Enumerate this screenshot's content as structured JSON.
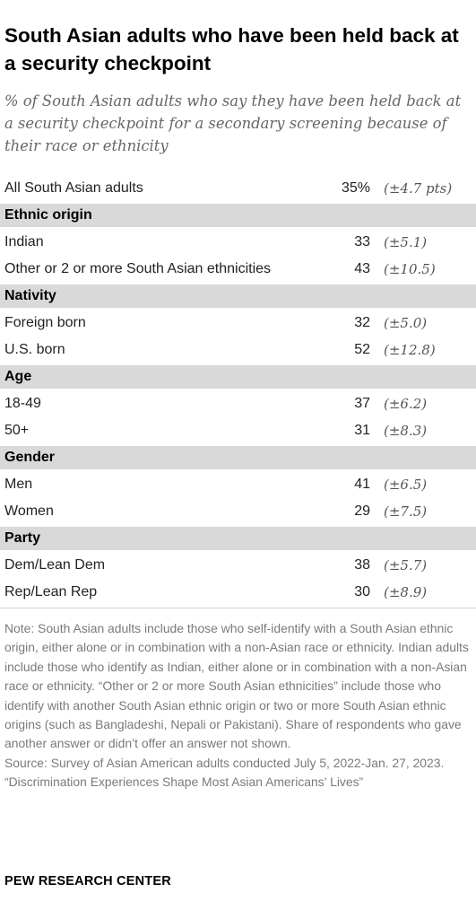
{
  "title": "South Asian adults who have been held back at a security checkpoint",
  "subtitle": "% of South Asian adults who say they have been held back at a security checkpoint for a secondary screening because of their race or ethnicity",
  "chart_data": {
    "type": "table",
    "columns": [
      "Group",
      "Share (%)",
      "Margin of error"
    ],
    "rows": [
      {
        "kind": "row",
        "label": "All South Asian adults",
        "value": "35%",
        "moe": "(±4.7 pts)"
      },
      {
        "kind": "header",
        "label": "Ethnic origin"
      },
      {
        "kind": "row",
        "label": "Indian",
        "value": "33",
        "moe": "(±5.1)"
      },
      {
        "kind": "row",
        "label": "Other or 2 or more South Asian ethnicities",
        "value": "43",
        "moe": "(±10.5)"
      },
      {
        "kind": "header",
        "label": "Nativity"
      },
      {
        "kind": "row",
        "label": "Foreign born",
        "value": "32",
        "moe": "(±5.0)"
      },
      {
        "kind": "row",
        "label": "U.S. born",
        "value": "52",
        "moe": "(±12.8)"
      },
      {
        "kind": "header",
        "label": "Age"
      },
      {
        "kind": "row",
        "label": "18-49",
        "value": "37",
        "moe": "(±6.2)"
      },
      {
        "kind": "row",
        "label": "50+",
        "value": "31",
        "moe": "(±8.3)"
      },
      {
        "kind": "header",
        "label": "Gender"
      },
      {
        "kind": "row",
        "label": "Men",
        "value": "41",
        "moe": "(±6.5)"
      },
      {
        "kind": "row",
        "label": "Women",
        "value": "29",
        "moe": "(±7.5)"
      },
      {
        "kind": "header",
        "label": "Party"
      },
      {
        "kind": "row",
        "label": "Dem/Lean Dem",
        "value": "38",
        "moe": "(±5.7)"
      },
      {
        "kind": "row",
        "label": "Rep/Lean Rep",
        "value": "30",
        "moe": "(±8.9)"
      }
    ]
  },
  "notes": {
    "note": "Note: South Asian adults include those who self-identify with a South Asian ethnic origin, either alone or in combination with a non-Asian race or ethnicity. Indian adults include those who identify as Indian, either alone or in combination with a non-Asian race or ethnicity. “Other or 2 or more South Asian ethnicities” include those who identify with another South Asian ethnic origin or two or more South Asian ethnic origins (such as Bangladeshi, Nepali or Pakistani). Share of respondents who gave another answer or didn’t offer an answer not shown.",
    "source": "Source: Survey of Asian American adults conducted July 5, 2022-Jan. 27, 2023.",
    "report": "“Discrimination Experiences Shape Most Asian Americans’ Lives”"
  },
  "brand": "PEW RESEARCH CENTER",
  "colors": {
    "header_band": "#d9d9d9",
    "body_text": "#222222",
    "muted_text": "#7a7a7a",
    "divider": "#cfcfcf"
  }
}
